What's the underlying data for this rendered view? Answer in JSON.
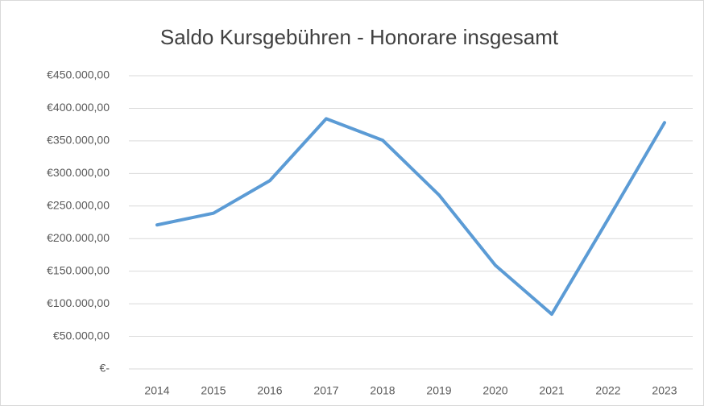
{
  "chart_data": {
    "type": "line",
    "title": "Saldo Kursgebühren - Honorare insgesamt",
    "categories": [
      "2014",
      "2015",
      "2016",
      "2017",
      "2018",
      "2019",
      "2020",
      "2021",
      "2022",
      "2023"
    ],
    "series": [
      {
        "name": "Saldo",
        "color": "#5b9bd5",
        "values": [
          221000,
          239000,
          289000,
          384000,
          351000,
          267000,
          159000,
          84000,
          230000,
          378000
        ]
      }
    ],
    "ylim": [
      0,
      450000
    ],
    "yticks": [
      {
        "value": 0,
        "label": "€-"
      },
      {
        "value": 50000,
        "label": "€50.000,00"
      },
      {
        "value": 100000,
        "label": "€100.000,00"
      },
      {
        "value": 150000,
        "label": "€150.000,00"
      },
      {
        "value": 200000,
        "label": "€200.000,00"
      },
      {
        "value": 250000,
        "label": "€250.000,00"
      },
      {
        "value": 300000,
        "label": "€300.000,00"
      },
      {
        "value": 350000,
        "label": "€350.000,00"
      },
      {
        "value": 400000,
        "label": "€400.000,00"
      },
      {
        "value": 450000,
        "label": "€450.000,00"
      }
    ],
    "grid": true
  }
}
